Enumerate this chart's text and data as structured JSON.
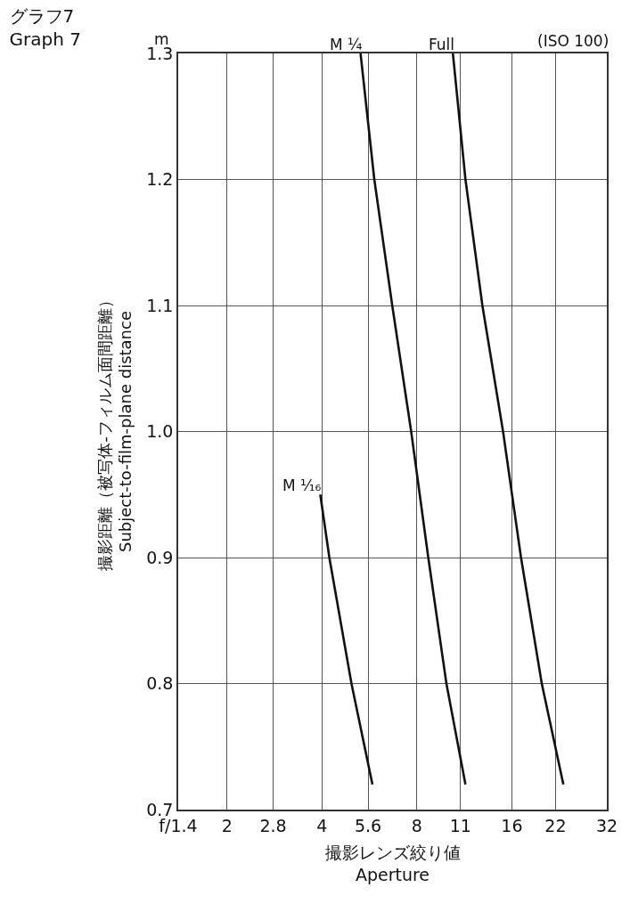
{
  "chart_data": {
    "type": "line",
    "title": "グラフ7\nGraph 7",
    "xlabel": "撮影レンズ絞り値\nAperture",
    "ylabel": "撮影距離（被写体-フィルム面間距離）\nSubject-to-film-plane distance",
    "log": "x",
    "xlim": [
      1.4,
      32
    ],
    "xticks": [
      {
        "value": 1.4,
        "label": "f/1.4"
      },
      2,
      2.8,
      4,
      5.6,
      8,
      11,
      16,
      22,
      32
    ],
    "ylim": [
      0.7,
      1.3
    ],
    "yticks": [
      0.7,
      0.8,
      0.9,
      {
        "value": 1.0,
        "label": "1.0"
      },
      1.1,
      1.2,
      1.3
    ],
    "grid": true,
    "legend": false,
    "marker": "none",
    "line_style": "solid",
    "annotations": [
      "m",
      "(ISO 100)"
    ],
    "series": [
      {
        "name": "M ¼",
        "color": "#111111",
        "x": [
          5.3,
          5.86,
          6.68,
          7.67,
          8.69,
          9.92,
          11.4
        ],
        "values": [
          1.3,
          1.2,
          1.1,
          1.0,
          0.9,
          0.8,
          0.72
        ]
      },
      {
        "name": "Full",
        "color": "#111111",
        "x": [
          10.4,
          11.4,
          12.9,
          15.0,
          17.1,
          19.9,
          23.3
        ],
        "values": [
          1.3,
          1.2,
          1.1,
          1.0,
          0.9,
          0.8,
          0.72
        ]
      },
      {
        "name": "M ¹⁄₁₆",
        "color": "#111111",
        "x": [
          3.95,
          4.22,
          4.96,
          5.78
        ],
        "values": [
          0.95,
          0.9,
          0.8,
          0.72
        ]
      }
    ]
  }
}
